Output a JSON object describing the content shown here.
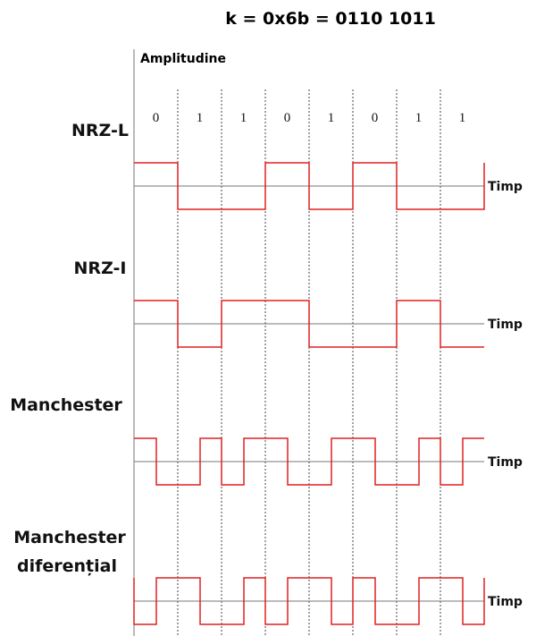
{
  "title": "k = 0x6b = 0110 1011",
  "axis_label": "Amplitudine",
  "bits": [
    "0",
    "1",
    "1",
    "0",
    "1",
    "0",
    "1",
    "1"
  ],
  "signals": [
    {
      "label": [
        "NRZ-L"
      ],
      "time_label": "Timp"
    },
    {
      "label": [
        "NRZ-I"
      ],
      "time_label": "Timp"
    },
    {
      "label": [
        "Manchester"
      ],
      "time_label": "Timp"
    },
    {
      "label": [
        "Manchester",
        "diferențial"
      ],
      "time_label": "Timp"
    }
  ]
}
